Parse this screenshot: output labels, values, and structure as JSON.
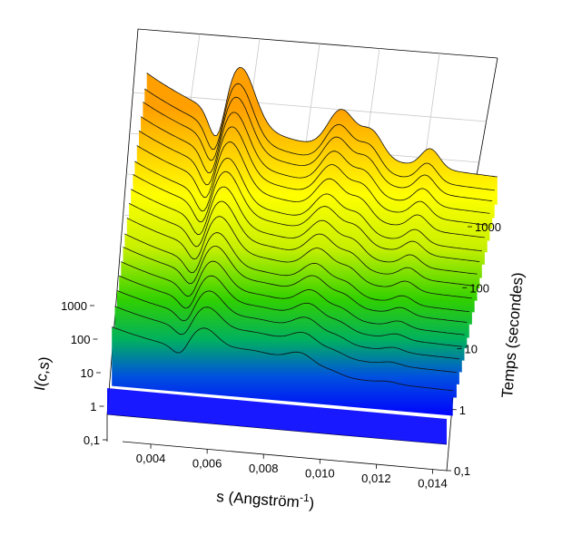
{
  "chart_data": {
    "type": "waterfall-3d",
    "xlabel": "s (Angström-1)",
    "xlabel_main": "s (Angström",
    "xlabel_sup": "-1",
    "xlabel_close": ")",
    "ylabel": "Temps (secondes)",
    "zlabel": "I(c,s)",
    "x_ticks": [
      "0,004",
      "0,006",
      "0,008",
      "0,010",
      "0,012",
      "0,014"
    ],
    "x_tick_values": [
      0.004,
      0.006,
      0.008,
      0.01,
      0.012,
      0.014
    ],
    "xlim": [
      0.003,
      0.0145
    ],
    "y_ticks": [
      "0,1",
      "1",
      "10",
      "100",
      "1000"
    ],
    "y_tick_values": [
      0.1,
      1,
      10,
      100,
      1000
    ],
    "y_scale": "log",
    "ylim": [
      0.1,
      1000
    ],
    "z_ticks": [
      "0,1",
      "1",
      "10",
      "100",
      "1000"
    ],
    "z_tick_values": [
      0.1,
      1,
      10,
      100,
      1000
    ],
    "z_scale": "log",
    "colormap": [
      "#0000ff",
      "#00d400",
      "#ffff00",
      "#ffa000"
    ],
    "grid": true,
    "series_times": [
      0.3,
      0.6,
      1,
      1.6,
      2.5,
      4,
      6,
      10,
      16,
      25,
      40,
      60,
      100,
      160,
      250,
      400,
      600,
      1000
    ],
    "features": [
      {
        "name": "dip1",
        "s": 0.0053
      },
      {
        "name": "peak1",
        "s": 0.0061
      },
      {
        "name": "peak2",
        "s": 0.0094
      },
      {
        "name": "peak3",
        "s": 0.0104
      },
      {
        "name": "peak4",
        "s": 0.0123
      }
    ]
  }
}
